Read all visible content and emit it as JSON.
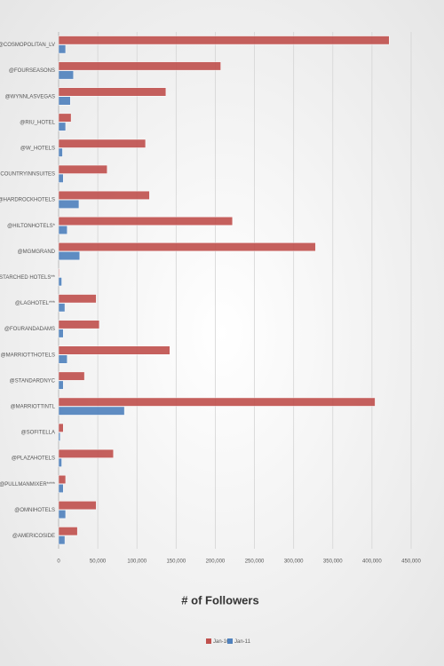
{
  "chart_data": {
    "type": "bar",
    "categories": [
      "@COSMOPOLITAN_LV",
      "@FOURSEASONS",
      "@WYNNLASVEGAS",
      "@RIU_HOTEL",
      "@W_HOTELS",
      "@COUNTRYINNSUITES",
      "@HARDROCKHOTELS",
      "@HILTONHOTELS*",
      "@MGMGRAND",
      "@STARCHED HOTELS**",
      "@LAGHOTEL***",
      "@FOURANDADAMS",
      "@MARRIOTTHOTELS",
      "@STANDARDNYC",
      "@MARRIOTTINTL",
      "@SOFITELLA",
      "@PLAZAHOTELS",
      "@PULLMANMIXER****",
      "@OMNIHOTELS",
      "@AMERICOSIDE"
    ],
    "series": [
      {
        "name": "Jan-16",
        "color": "#c0504d",
        "values": [
          422000,
          207000,
          137000,
          16000,
          111000,
          62000,
          116000,
          222000,
          328000,
          1000,
          48000,
          52000,
          142000,
          33000,
          404000,
          6000,
          70000,
          9000,
          48000,
          24000
        ]
      },
      {
        "name": "Jan-11",
        "color": "#4f81bd",
        "values": [
          9000,
          19000,
          15000,
          9000,
          5000,
          6000,
          26000,
          11000,
          27000,
          4000,
          8000,
          6000,
          11000,
          6000,
          84000,
          2000,
          4000,
          6000,
          9000,
          8000
        ]
      }
    ],
    "xlabel": "# of Followers",
    "xlim": [
      0,
      450000
    ],
    "xticks": [
      0,
      {
        "value": 50000,
        "label": "50,000"
      },
      {
        "value": 100000,
        "label": "100,000"
      },
      {
        "value": 150000,
        "label": "150,000"
      },
      {
        "value": 200000,
        "label": "200,000"
      },
      {
        "value": 250000,
        "label": "250,000"
      },
      {
        "value": 300000,
        "label": "300,000"
      },
      {
        "value": 350000,
        "label": "350,000"
      },
      {
        "value": 400000,
        "label": "400,000"
      },
      {
        "value": 450000,
        "label": "450,000"
      }
    ],
    "grid": true,
    "legend": "bottom"
  }
}
